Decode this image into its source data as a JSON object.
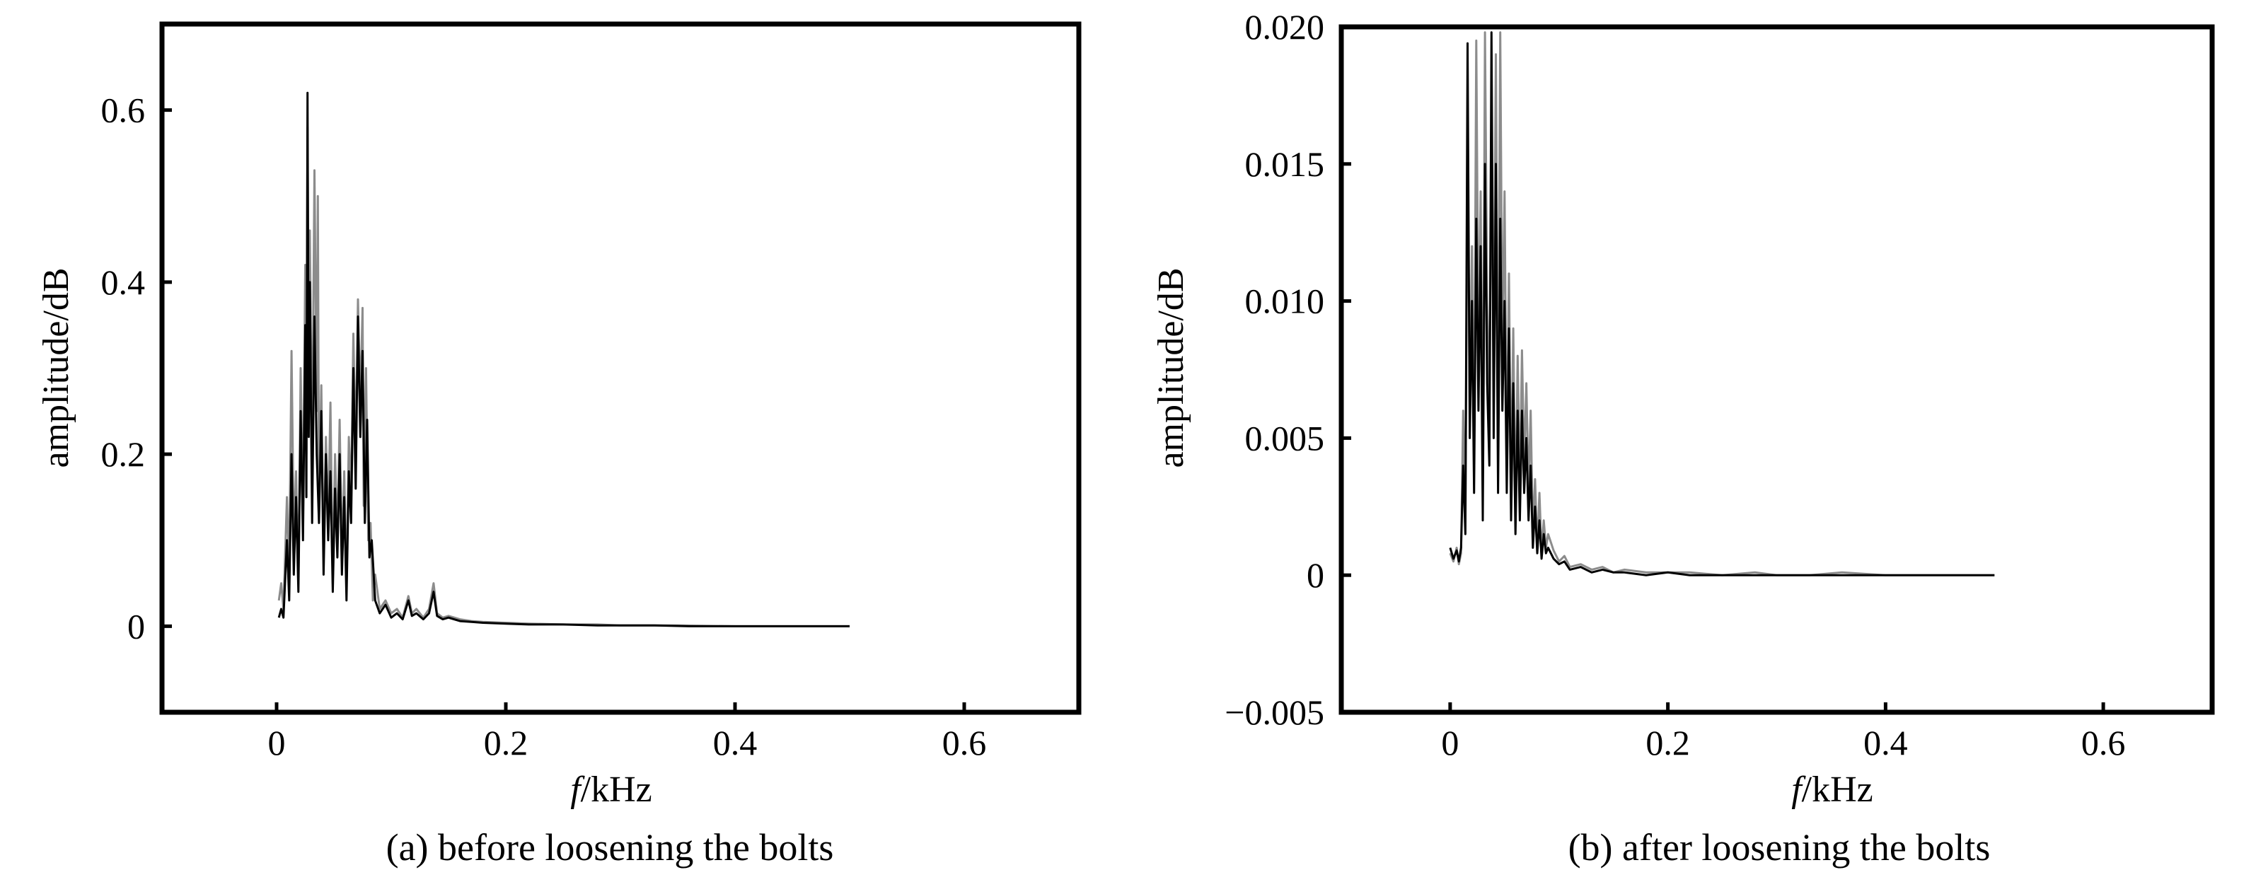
{
  "chart_data": [
    {
      "id": "a",
      "type": "line",
      "caption": "(a) before loosening the bolts",
      "xlabel_italic": "f",
      "xlabel_rest": "/kHz",
      "ylabel": "amplitude/dB",
      "xlim": [
        -0.1,
        0.7
      ],
      "ylim": [
        -0.1,
        0.7
      ],
      "xticks": [
        0,
        0.2,
        0.4,
        0.6
      ],
      "xtick_labels": [
        "0",
        "0.2",
        "0.4",
        "0.6"
      ],
      "yticks": [
        0,
        0.2,
        0.4,
        0.6
      ],
      "ytick_labels": [
        "0",
        "0.2",
        "0.4",
        "0.6"
      ],
      "grid": false,
      "series": [
        {
          "color": "#8c8c8c",
          "x": [
            0.002,
            0.004,
            0.006,
            0.009,
            0.011,
            0.013,
            0.015,
            0.017,
            0.019,
            0.021,
            0.023,
            0.025,
            0.026,
            0.027,
            0.028,
            0.029,
            0.031,
            0.033,
            0.035,
            0.036,
            0.037,
            0.039,
            0.041,
            0.043,
            0.045,
            0.047,
            0.049,
            0.051,
            0.053,
            0.055,
            0.057,
            0.059,
            0.061,
            0.063,
            0.065,
            0.067,
            0.069,
            0.071,
            0.073,
            0.075,
            0.076,
            0.078,
            0.08,
            0.082,
            0.084,
            0.086,
            0.09,
            0.095,
            0.1,
            0.105,
            0.11,
            0.115,
            0.118,
            0.122,
            0.128,
            0.133,
            0.137,
            0.14,
            0.145,
            0.15,
            0.16,
            0.17,
            0.18,
            0.2,
            0.22,
            0.25,
            0.28,
            0.3,
            0.32,
            0.35,
            0.4,
            0.45,
            0.5
          ],
          "y": [
            0.03,
            0.05,
            0.02,
            0.15,
            0.06,
            0.32,
            0.1,
            0.18,
            0.05,
            0.3,
            0.12,
            0.42,
            0.2,
            0.58,
            0.3,
            0.46,
            0.18,
            0.53,
            0.25,
            0.5,
            0.14,
            0.28,
            0.08,
            0.22,
            0.12,
            0.26,
            0.05,
            0.2,
            0.1,
            0.24,
            0.08,
            0.18,
            0.04,
            0.22,
            0.15,
            0.34,
            0.2,
            0.38,
            0.26,
            0.37,
            0.14,
            0.3,
            0.1,
            0.12,
            0.03,
            0.06,
            0.02,
            0.03,
            0.015,
            0.02,
            0.01,
            0.035,
            0.015,
            0.02,
            0.01,
            0.02,
            0.05,
            0.015,
            0.01,
            0.012,
            0.008,
            0.006,
            0.005,
            0.004,
            0.003,
            0.002,
            0.002,
            0.001,
            0.001,
            0.001,
            0.0,
            0.0,
            0.0
          ]
        },
        {
          "color": "#000000",
          "x": [
            0.002,
            0.004,
            0.006,
            0.009,
            0.011,
            0.013,
            0.015,
            0.017,
            0.019,
            0.021,
            0.023,
            0.025,
            0.026,
            0.027,
            0.028,
            0.029,
            0.031,
            0.033,
            0.035,
            0.037,
            0.039,
            0.041,
            0.043,
            0.045,
            0.047,
            0.049,
            0.051,
            0.053,
            0.055,
            0.057,
            0.059,
            0.061,
            0.063,
            0.065,
            0.067,
            0.069,
            0.071,
            0.073,
            0.075,
            0.077,
            0.079,
            0.081,
            0.083,
            0.086,
            0.09,
            0.095,
            0.1,
            0.105,
            0.11,
            0.115,
            0.118,
            0.122,
            0.128,
            0.133,
            0.137,
            0.14,
            0.145,
            0.15,
            0.16,
            0.17,
            0.18,
            0.2,
            0.22,
            0.25,
            0.28,
            0.3,
            0.33,
            0.36,
            0.4,
            0.45,
            0.5
          ],
          "y": [
            0.01,
            0.02,
            0.01,
            0.1,
            0.03,
            0.2,
            0.06,
            0.15,
            0.04,
            0.25,
            0.1,
            0.35,
            0.15,
            0.62,
            0.22,
            0.4,
            0.12,
            0.36,
            0.2,
            0.12,
            0.25,
            0.06,
            0.2,
            0.1,
            0.18,
            0.04,
            0.16,
            0.08,
            0.2,
            0.06,
            0.15,
            0.03,
            0.18,
            0.12,
            0.3,
            0.16,
            0.36,
            0.22,
            0.32,
            0.12,
            0.24,
            0.08,
            0.1,
            0.03,
            0.015,
            0.025,
            0.01,
            0.015,
            0.008,
            0.03,
            0.012,
            0.015,
            0.008,
            0.015,
            0.04,
            0.012,
            0.008,
            0.01,
            0.006,
            0.005,
            0.004,
            0.003,
            0.002,
            0.002,
            0.001,
            0.001,
            0.001,
            0.0,
            0.0,
            0.0,
            0.0
          ]
        }
      ]
    },
    {
      "id": "b",
      "type": "line",
      "caption": "(b) after loosening the bolts",
      "xlabel_italic": "f",
      "xlabel_rest": "/kHz",
      "ylabel": "amplitude/dB",
      "xlim": [
        -0.1,
        0.7
      ],
      "ylim": [
        -0.005,
        0.02
      ],
      "xticks": [
        0,
        0.2,
        0.4,
        0.6
      ],
      "xtick_labels": [
        "0",
        "0.2",
        "0.4",
        "0.6"
      ],
      "yticks": [
        -0.005,
        0,
        0.005,
        0.01,
        0.015,
        0.02
      ],
      "ytick_labels": [
        "−0.005",
        "0",
        "0.005",
        "0.010",
        "0.015",
        "0.020"
      ],
      "grid": false,
      "series": [
        {
          "color": "#8c8c8c",
          "x": [
            0.0,
            0.003,
            0.006,
            0.008,
            0.01,
            0.012,
            0.014,
            0.016,
            0.018,
            0.02,
            0.022,
            0.024,
            0.026,
            0.028,
            0.03,
            0.032,
            0.034,
            0.036,
            0.038,
            0.04,
            0.042,
            0.044,
            0.046,
            0.048,
            0.05,
            0.052,
            0.054,
            0.056,
            0.058,
            0.06,
            0.062,
            0.064,
            0.066,
            0.068,
            0.07,
            0.072,
            0.074,
            0.076,
            0.078,
            0.08,
            0.082,
            0.084,
            0.086,
            0.088,
            0.09,
            0.095,
            0.1,
            0.105,
            0.11,
            0.12,
            0.13,
            0.14,
            0.15,
            0.16,
            0.18,
            0.2,
            0.22,
            0.25,
            0.28,
            0.3,
            0.33,
            0.36,
            0.4,
            0.45,
            0.5
          ],
          "y": [
            0.0008,
            0.0005,
            0.001,
            0.0004,
            0.0008,
            0.006,
            0.002,
            0.016,
            0.006,
            0.012,
            0.004,
            0.0195,
            0.008,
            0.014,
            0.003,
            0.0198,
            0.01,
            0.006,
            0.016,
            0.007,
            0.019,
            0.005,
            0.0198,
            0.008,
            0.014,
            0.004,
            0.011,
            0.003,
            0.009,
            0.002,
            0.008,
            0.003,
            0.0082,
            0.004,
            0.007,
            0.003,
            0.006,
            0.0015,
            0.0035,
            0.001,
            0.003,
            0.0008,
            0.002,
            0.001,
            0.0015,
            0.0009,
            0.0005,
            0.0007,
            0.0003,
            0.0004,
            0.0002,
            0.0003,
            0.0001,
            0.0002,
            0.0001,
            0.0001,
            0.0001,
            0.0,
            0.0001,
            0.0,
            0.0,
            0.0001,
            0.0,
            0.0,
            0.0
          ]
        },
        {
          "color": "#000000",
          "x": [
            0.0,
            0.003,
            0.006,
            0.008,
            0.01,
            0.012,
            0.014,
            0.016,
            0.018,
            0.02,
            0.022,
            0.024,
            0.026,
            0.028,
            0.03,
            0.032,
            0.034,
            0.036,
            0.038,
            0.04,
            0.042,
            0.044,
            0.046,
            0.048,
            0.05,
            0.052,
            0.054,
            0.056,
            0.058,
            0.06,
            0.062,
            0.064,
            0.066,
            0.068,
            0.07,
            0.072,
            0.074,
            0.076,
            0.078,
            0.08,
            0.082,
            0.084,
            0.086,
            0.088,
            0.09,
            0.095,
            0.1,
            0.105,
            0.11,
            0.12,
            0.13,
            0.14,
            0.15,
            0.16,
            0.18,
            0.2,
            0.22,
            0.25,
            0.28,
            0.3,
            0.33,
            0.36,
            0.4,
            0.45,
            0.5
          ],
          "y": [
            0.001,
            0.0006,
            0.0009,
            0.0005,
            0.001,
            0.004,
            0.0015,
            0.0194,
            0.005,
            0.01,
            0.003,
            0.013,
            0.006,
            0.012,
            0.002,
            0.015,
            0.007,
            0.004,
            0.0198,
            0.005,
            0.015,
            0.003,
            0.013,
            0.006,
            0.01,
            0.003,
            0.009,
            0.002,
            0.007,
            0.0015,
            0.006,
            0.002,
            0.006,
            0.003,
            0.005,
            0.002,
            0.004,
            0.001,
            0.0025,
            0.0008,
            0.002,
            0.0006,
            0.0015,
            0.0008,
            0.001,
            0.0006,
            0.0004,
            0.0005,
            0.0002,
            0.0003,
            0.0001,
            0.0002,
            0.0001,
            0.0001,
            0.0,
            0.0001,
            0.0,
            0.0,
            0.0,
            0.0,
            0.0,
            0.0,
            0.0,
            0.0,
            0.0
          ]
        }
      ]
    }
  ]
}
